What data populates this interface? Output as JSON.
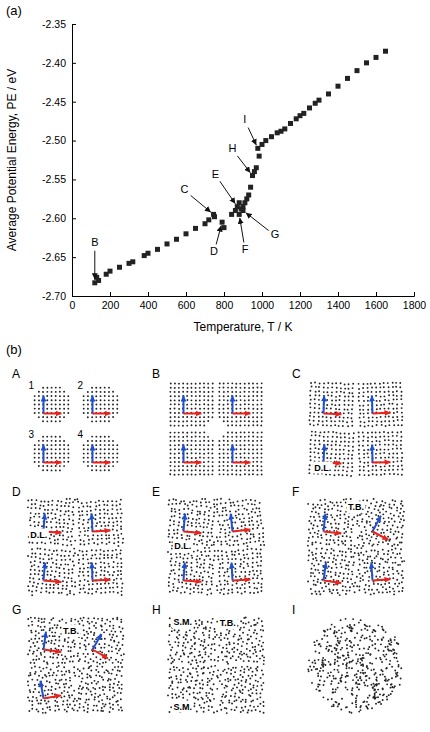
{
  "chart_data": {
    "type": "scatter",
    "x_label": "Temperature, T / K",
    "y_label": "Average Potential Energy, PE / eV",
    "x": [
      120,
      130,
      140,
      180,
      200,
      250,
      300,
      320,
      380,
      400,
      450,
      500,
      550,
      600,
      650,
      700,
      720,
      745,
      750,
      790,
      800,
      840,
      860,
      870,
      880,
      880,
      890,
      900,
      900,
      910,
      920,
      930,
      940,
      950,
      960,
      970,
      978,
      985,
      1000,
      1020,
      1050,
      1080,
      1100,
      1120,
      1150,
      1180,
      1200,
      1220,
      1250,
      1280,
      1300,
      1350,
      1400,
      1450,
      1500,
      1550,
      1600,
      1650
    ],
    "values": [
      -2.683,
      -2.676,
      -2.68,
      -2.672,
      -2.668,
      -2.663,
      -2.658,
      -2.656,
      -2.648,
      -2.645,
      -2.64,
      -2.633,
      -2.627,
      -2.62,
      -2.613,
      -2.607,
      -2.602,
      -2.595,
      -2.598,
      -2.605,
      -2.612,
      -2.595,
      -2.59,
      -2.585,
      -2.58,
      -2.595,
      -2.588,
      -2.585,
      -2.59,
      -2.58,
      -2.575,
      -2.57,
      -2.56,
      -2.545,
      -2.54,
      -2.535,
      -2.51,
      -2.52,
      -2.505,
      -2.5,
      -2.495,
      -2.49,
      -2.488,
      -2.485,
      -2.478,
      -2.472,
      -2.468,
      -2.465,
      -2.458,
      -2.452,
      -2.448,
      -2.44,
      -2.43,
      -2.42,
      -2.41,
      -2.4,
      -2.393,
      -2.385
    ],
    "color": "#222222",
    "marker": "square",
    "xlim": [
      0,
      1800
    ],
    "xticks": [
      0,
      200,
      400,
      600,
      800,
      1000,
      1200,
      1400,
      1600,
      1800
    ],
    "ylim": [
      -2.7,
      -2.35
    ],
    "yticks": [
      {
        "value": -2.7,
        "label": "-2.70"
      },
      -2.65,
      {
        "value": -2.6,
        "label": "-2.60"
      },
      -2.55,
      {
        "value": -2.5,
        "label": "-2.50"
      },
      -2.45,
      {
        "value": -2.4,
        "label": "-2.40"
      },
      -2.35
    ],
    "annotations": [
      {
        "text": "B",
        "x": 120,
        "y": -2.683
      },
      {
        "text": "C",
        "x": 745,
        "y": -2.595
      },
      {
        "text": "D",
        "x": 790,
        "y": -2.605
      },
      {
        "text": "E",
        "x": 870,
        "y": -2.585
      },
      {
        "text": "F",
        "x": 880,
        "y": -2.595
      },
      {
        "text": "G",
        "x": 900,
        "y": -2.59
      },
      {
        "text": "H",
        "x": 950,
        "y": -2.545
      },
      {
        "text": "I",
        "x": 978,
        "y": -2.51
      }
    ]
  },
  "panel_labels": [
    "(a)",
    "(b)"
  ],
  "snapshots": {
    "panels": [
      {
        "label": "A",
        "grain_labels": [
          "1",
          "2",
          "3",
          "4"
        ]
      },
      {
        "label": "B"
      },
      {
        "label": "C",
        "annotations": [
          "D.L."
        ]
      },
      {
        "label": "D",
        "annotations": [
          "D.L."
        ]
      },
      {
        "label": "E",
        "annotations": [
          "D.L."
        ]
      },
      {
        "label": "F",
        "annotations": [
          "T.B."
        ]
      },
      {
        "label": "G",
        "annotations": [
          "T.B."
        ]
      },
      {
        "label": "H",
        "annotations": [
          "T.B.",
          "S.M.",
          "S.M."
        ]
      },
      {
        "label": "I"
      }
    ]
  }
}
